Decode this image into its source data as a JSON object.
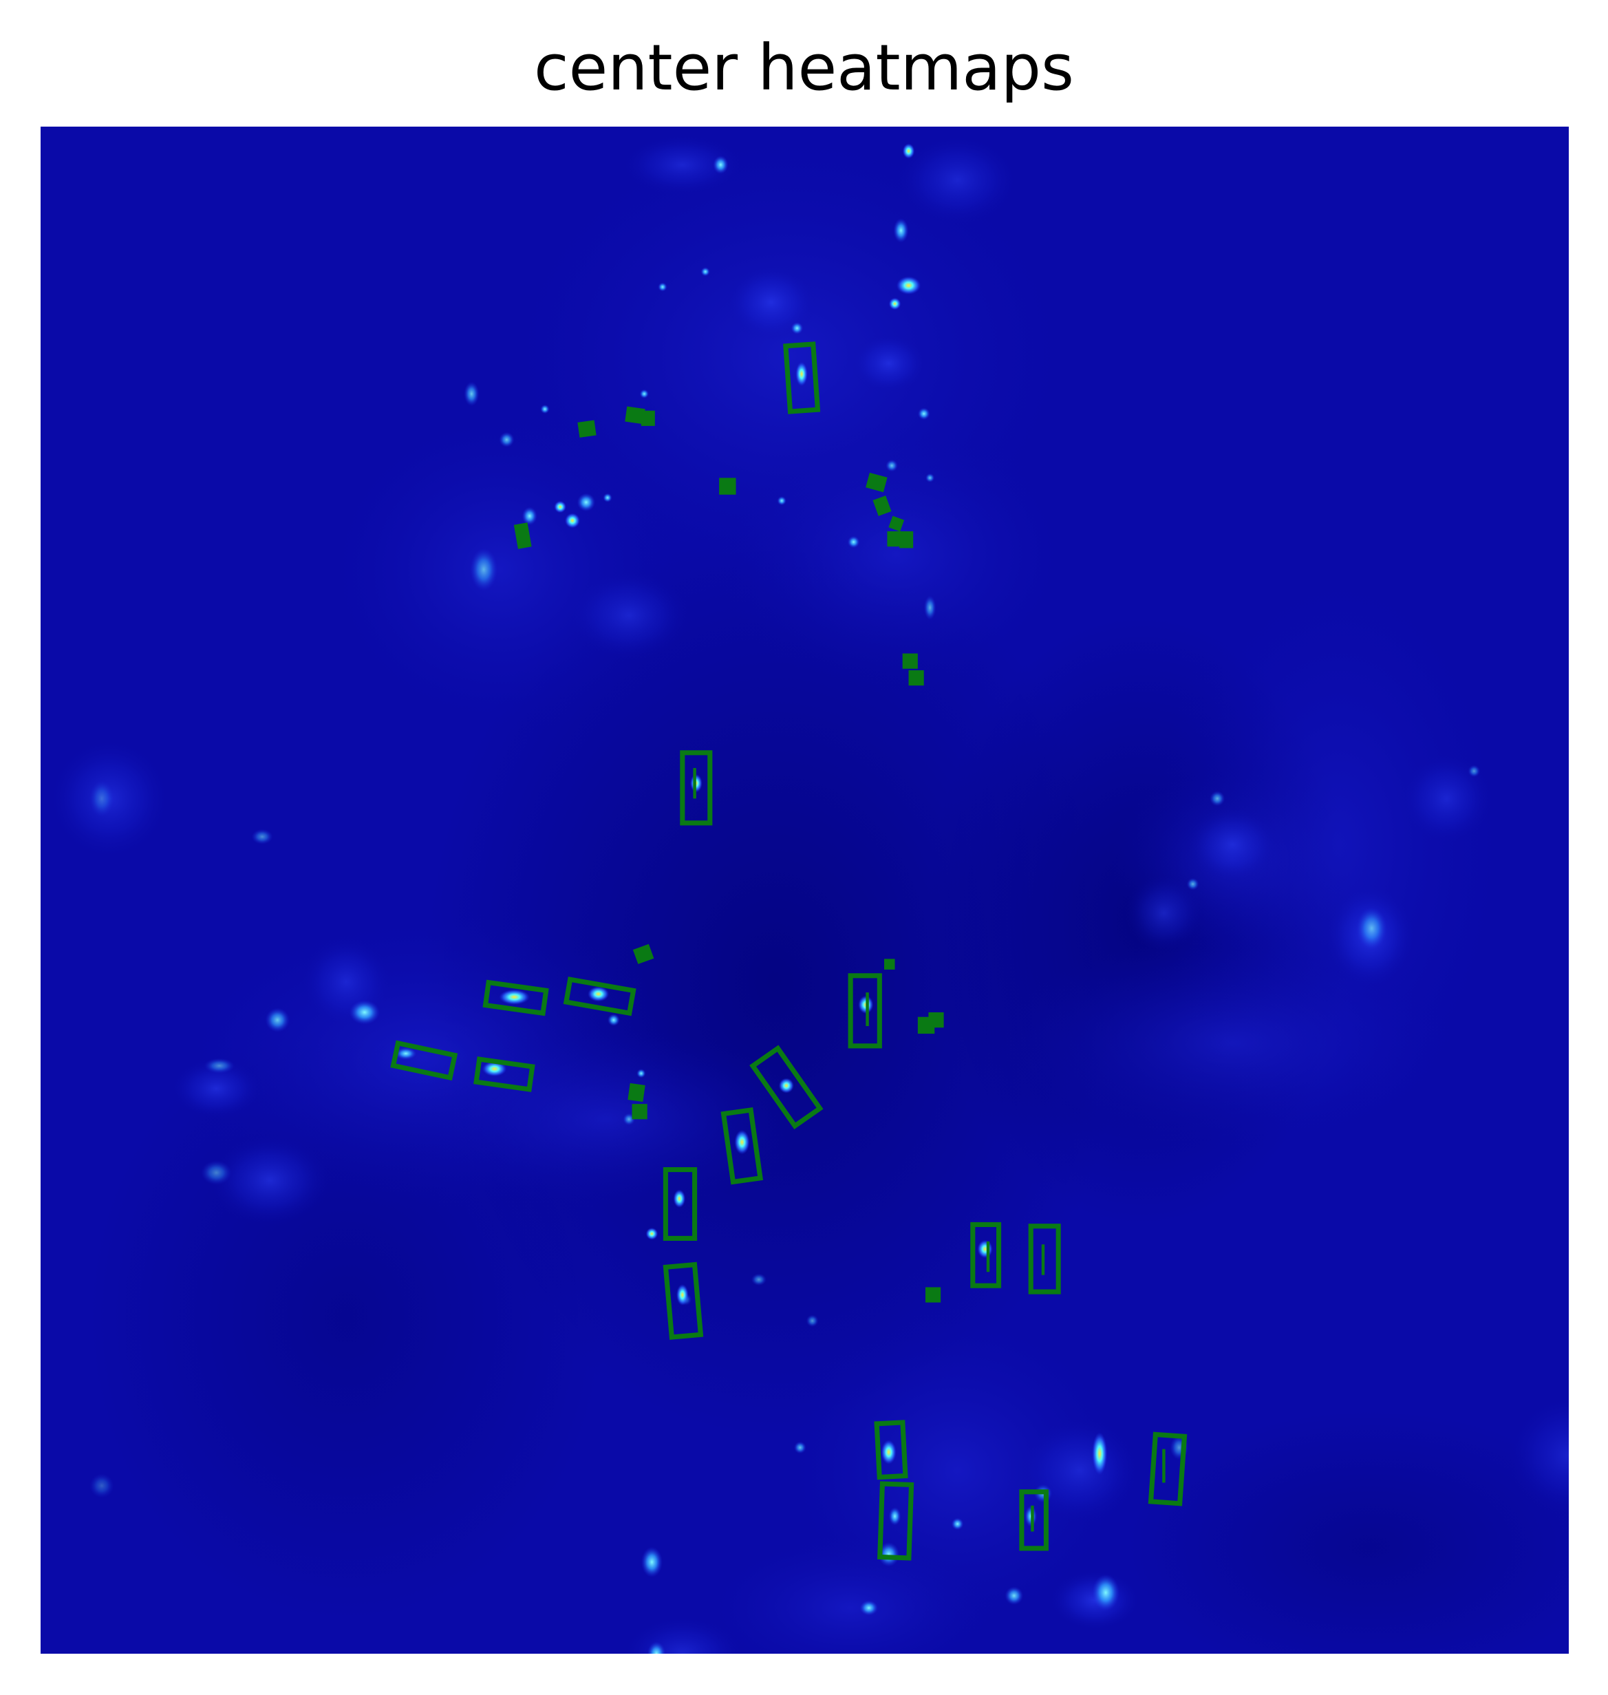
{
  "title": "center heatmaps",
  "colors": {
    "background": "#ffffff",
    "heatmap_base": "#0a0aa8",
    "heatmap_dark": "#030380",
    "heatmap_glow": "#2a3cff",
    "heatmap_peak_bright": "#4ff7ff",
    "heatmap_peak_hot": "#ffee30",
    "box_stroke": "#0a7a14"
  },
  "colormap": "jet",
  "axes_visible": false
}
